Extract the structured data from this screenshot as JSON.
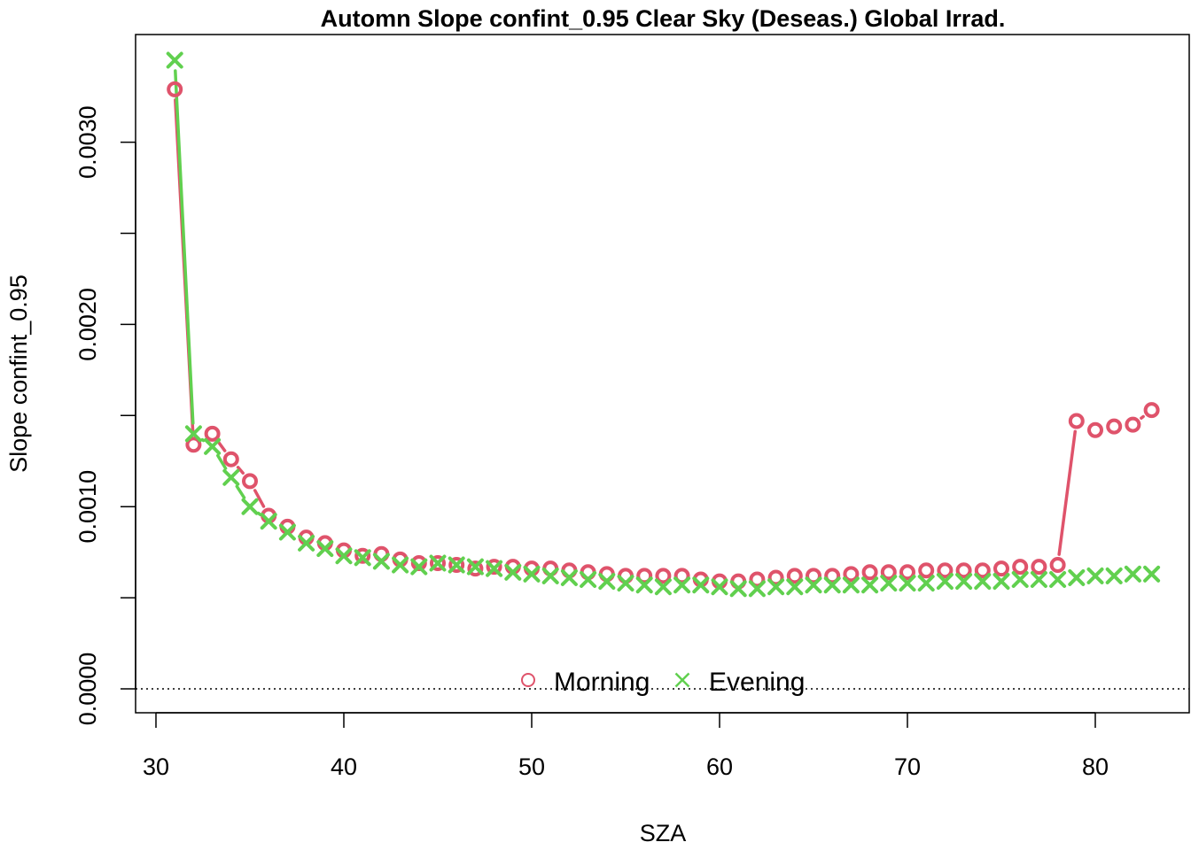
{
  "chart_data": {
    "type": "scatter",
    "title": "Automn Slope confint_0.95 Clear Sky (Deseas.) Global Irrad.",
    "xlabel": "SZA",
    "ylabel": "Slope confint_0.95",
    "xlim": [
      30,
      83
    ],
    "ylim": [
      0,
      0.0035
    ],
    "x_ticks": [
      30,
      40,
      50,
      60,
      70,
      80
    ],
    "x_tick_labels": [
      "30",
      "40",
      "50",
      "60",
      "70",
      "80"
    ],
    "y_ticks": [
      0,
      0.0005,
      0.001,
      0.0015,
      0.002,
      0.0025,
      0.003
    ],
    "y_tick_labels": [
      "0.0000",
      "",
      "0.0010",
      "",
      "0.0020",
      "",
      "0.0030"
    ],
    "reference_line": {
      "y": 0,
      "style": "dotted"
    },
    "legend": {
      "position": "bottom-center",
      "entries": [
        "Morning",
        "Evening"
      ]
    },
    "series": [
      {
        "name": "Morning",
        "marker": "circle",
        "color": "#DF536B",
        "x": [
          31,
          32,
          33,
          34,
          35,
          36,
          37,
          38,
          39,
          40,
          41,
          42,
          43,
          44,
          45,
          46,
          47,
          48,
          49,
          50,
          51,
          52,
          53,
          54,
          55,
          56,
          57,
          58,
          59,
          60,
          61,
          62,
          63,
          64,
          65,
          66,
          67,
          68,
          69,
          70,
          71,
          72,
          73,
          74,
          75,
          76,
          77,
          78,
          79,
          80,
          81,
          82,
          83
        ],
        "y": [
          0.00329,
          0.00134,
          0.0014,
          0.00126,
          0.00114,
          0.00095,
          0.00089,
          0.00083,
          0.0008,
          0.00076,
          0.00073,
          0.00074,
          0.00071,
          0.00069,
          0.00069,
          0.00068,
          0.00066,
          0.00067,
          0.00067,
          0.00066,
          0.00066,
          0.00065,
          0.00064,
          0.00063,
          0.00062,
          0.00062,
          0.00062,
          0.00062,
          0.0006,
          0.00059,
          0.00059,
          0.0006,
          0.00061,
          0.00062,
          0.00062,
          0.00062,
          0.00063,
          0.00064,
          0.00064,
          0.00064,
          0.00065,
          0.00065,
          0.00065,
          0.00065,
          0.00066,
          0.00067,
          0.00067,
          0.00068,
          0.00147,
          0.00142,
          0.00144,
          0.00145,
          0.00153
        ]
      },
      {
        "name": "Evening",
        "marker": "cross",
        "color": "#61D04F",
        "x": [
          31,
          32,
          33,
          34,
          35,
          36,
          37,
          38,
          39,
          40,
          41,
          42,
          43,
          44,
          45,
          46,
          47,
          48,
          49,
          50,
          51,
          52,
          53,
          54,
          55,
          56,
          57,
          58,
          59,
          60,
          61,
          62,
          63,
          64,
          65,
          66,
          67,
          68,
          69,
          70,
          71,
          72,
          73,
          74,
          75,
          76,
          77,
          78,
          79,
          80,
          81,
          82,
          83
        ],
        "y": [
          0.00345,
          0.0014,
          0.00133,
          0.00116,
          0.001,
          0.00092,
          0.00086,
          0.0008,
          0.00077,
          0.00073,
          0.00072,
          0.0007,
          0.00068,
          0.00067,
          0.00069,
          0.00068,
          0.00067,
          0.00066,
          0.00064,
          0.00063,
          0.00062,
          0.00061,
          0.0006,
          0.00059,
          0.00058,
          0.00057,
          0.00056,
          0.00057,
          0.00057,
          0.00056,
          0.00055,
          0.00055,
          0.00056,
          0.00056,
          0.00057,
          0.00057,
          0.00057,
          0.00057,
          0.00058,
          0.00058,
          0.00058,
          0.00059,
          0.00059,
          0.00059,
          0.00059,
          0.0006,
          0.0006,
          0.0006,
          0.00061,
          0.00062,
          0.00062,
          0.00063,
          0.00063
        ]
      }
    ]
  }
}
